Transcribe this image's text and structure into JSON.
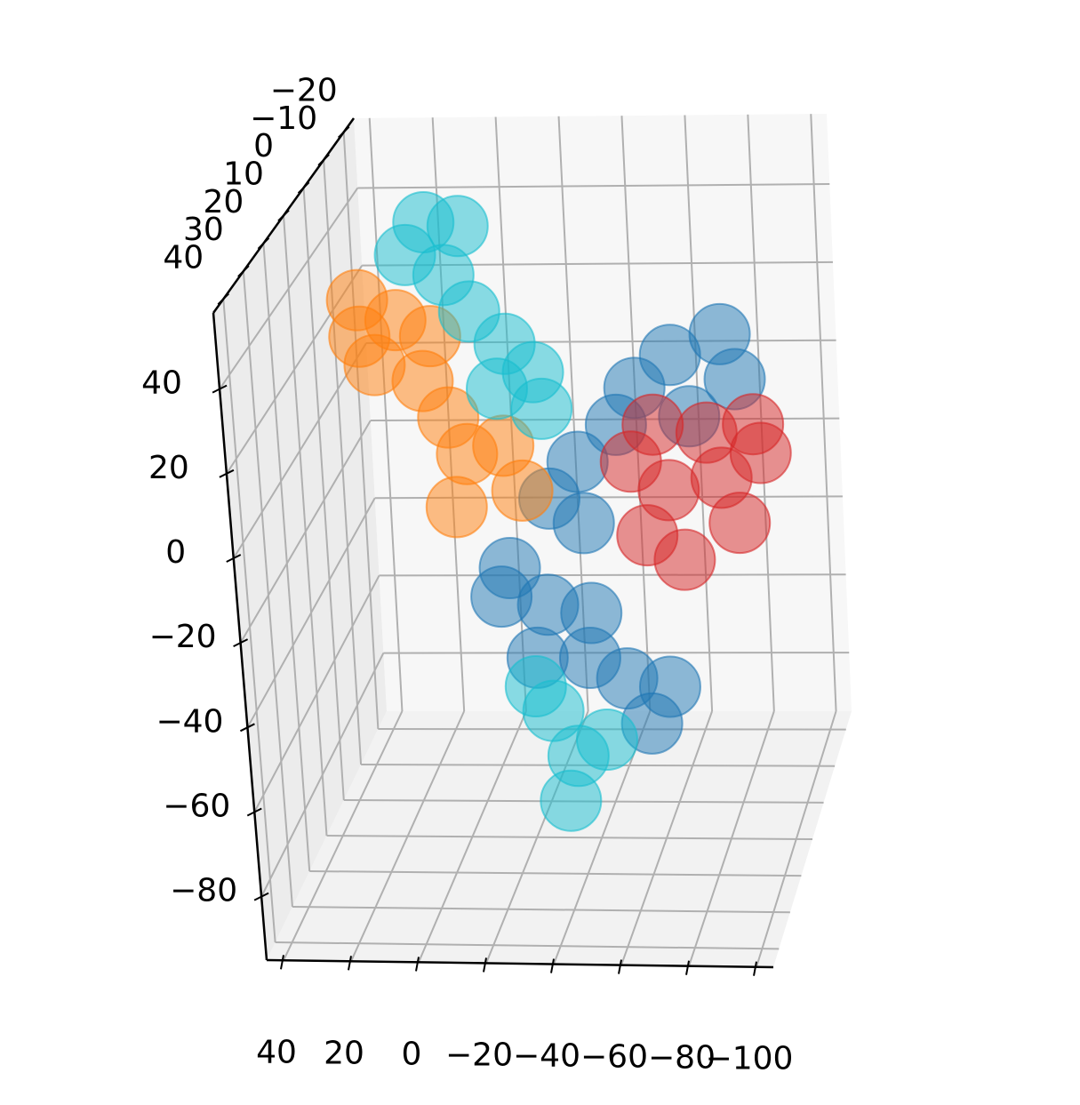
{
  "chart_data": {
    "type": "scatter3d",
    "xlim": [
      -105,
      45
    ],
    "ylim": [
      -25,
      45
    ],
    "zlim": [
      -95,
      58
    ],
    "xticks": [
      {
        "value": 40,
        "label": "40"
      },
      {
        "value": 20,
        "label": "20"
      },
      {
        "value": 0,
        "label": "0"
      },
      {
        "value": -20,
        "label": "−20"
      },
      {
        "value": -40,
        "label": "−40"
      },
      {
        "value": -60,
        "label": "−60"
      },
      {
        "value": -80,
        "label": "−80"
      },
      {
        "value": -100,
        "label": "−100"
      }
    ],
    "yticks": [
      {
        "value": -20,
        "label": "−20"
      },
      {
        "value": -10,
        "label": "−10"
      },
      0,
      10,
      20,
      30,
      40
    ],
    "zticks": [
      {
        "value": -80,
        "label": "−80"
      },
      {
        "value": -60,
        "label": "−60"
      },
      {
        "value": -40,
        "label": "−40"
      },
      {
        "value": -20,
        "label": "−20"
      },
      0,
      20,
      40
    ],
    "grid": true,
    "series": [
      {
        "color": "#1f77b4",
        "x": [
          -67,
          -82,
          -86,
          -56,
          -72,
          -50,
          -38,
          -29,
          -39,
          -16,
          -27,
          -23,
          -39,
          -50,
          -63,
          -57,
          -40,
          -13
        ],
        "y": [
          10,
          10,
          10,
          10,
          10,
          10,
          10,
          10,
          10,
          10,
          10,
          10,
          10,
          10,
          10,
          10,
          10,
          10
        ],
        "z": [
          23,
          28,
          17,
          15,
          8,
          6,
          -3,
          -12,
          -18,
          -29,
          -38,
          -51,
          -51,
          -56,
          -58,
          -67,
          -40,
          -36
        ]
      },
      {
        "color": "#ff7f0e",
        "x": [
          25,
          14,
          4,
          21,
          7,
          0,
          -5,
          -16,
          -1,
          -21,
          25
        ],
        "y": [
          10,
          10,
          10,
          10,
          10,
          10,
          10,
          10,
          10,
          10,
          10
        ],
        "z": [
          37,
          32,
          28,
          21,
          17,
          8,
          -1,
          1,
          -14,
          -10,
          28
        ]
      },
      {
        "color": "#d62728",
        "x": [
          -61,
          -77,
          -91,
          -65,
          -81,
          -58,
          -69,
          -86,
          -93,
          -54
        ],
        "y": [
          10,
          10,
          10,
          10,
          10,
          10,
          10,
          10,
          10,
          10
        ],
        "z": [
          6,
          4,
          6,
          -10,
          -7,
          -21,
          -27,
          -18,
          -1,
          -3
        ]
      },
      {
        "color": "#17becf",
        "x": [
          4,
          -6,
          10,
          -1,
          -8,
          -18,
          -26,
          -15,
          -28,
          -27,
          -34,
          -31,
          -43,
          -22
        ],
        "y": [
          10,
          10,
          10,
          10,
          10,
          10,
          10,
          10,
          10,
          10,
          10,
          10,
          10,
          10
        ],
        "z": [
          56,
          55,
          48,
          43,
          34,
          26,
          19,
          15,
          10,
          -64,
          -75,
          -86,
          -71,
          -58
        ]
      }
    ]
  }
}
